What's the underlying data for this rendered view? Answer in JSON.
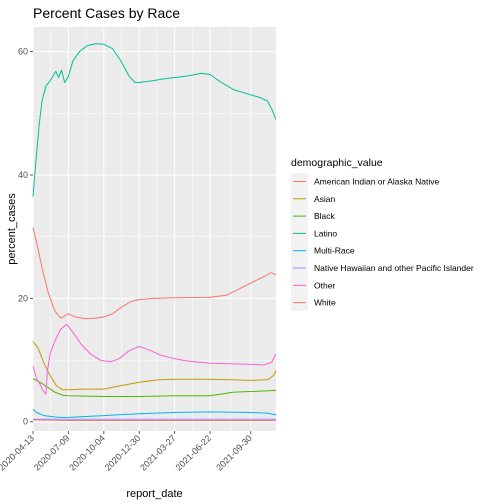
{
  "chart_data": {
    "type": "line",
    "title": "Percent Cases by Race",
    "xlabel": "report_date",
    "ylabel": "percent_cases",
    "x_ticks": [
      "2020-04-13",
      "2020-07-09",
      "2020-10-04",
      "2020-12-30",
      "2021-03-27",
      "2021-06-22",
      "2021-09-30"
    ],
    "x_range": [
      "2020-04-13",
      "2021-12-01"
    ],
    "y_ticks": [
      0,
      20,
      40,
      60
    ],
    "ylim": [
      -1.5,
      64
    ],
    "grid": true,
    "background": "#ebebeb",
    "legend": {
      "title": "demographic_value",
      "placement": "right"
    },
    "series": [
      {
        "name": "American Indian or Alaska Native",
        "color": "#F8766D",
        "points": [
          [
            "2020-04-13",
            0.3
          ],
          [
            "2020-07-09",
            0.2
          ],
          [
            "2020-12-30",
            0.2
          ],
          [
            "2021-06-22",
            0.2
          ],
          [
            "2021-12-01",
            0.2
          ]
        ]
      },
      {
        "name": "Asian",
        "color": "#C49A00",
        "points": [
          [
            "2020-04-13",
            13.0
          ],
          [
            "2020-04-25",
            12.0
          ],
          [
            "2020-05-10",
            9.5
          ],
          [
            "2020-05-25",
            7.5
          ],
          [
            "2020-06-10",
            5.8
          ],
          [
            "2020-06-25",
            5.2
          ],
          [
            "2020-07-09",
            5.2
          ],
          [
            "2020-08-15",
            5.3
          ],
          [
            "2020-10-04",
            5.3
          ],
          [
            "2020-11-10",
            5.8
          ],
          [
            "2020-12-30",
            6.4
          ],
          [
            "2021-02-15",
            6.8
          ],
          [
            "2021-03-27",
            6.9
          ],
          [
            "2021-05-10",
            6.9
          ],
          [
            "2021-06-22",
            6.9
          ],
          [
            "2021-08-10",
            6.8
          ],
          [
            "2021-09-30",
            6.7
          ],
          [
            "2021-11-10",
            6.8
          ],
          [
            "2021-11-25",
            7.5
          ],
          [
            "2021-12-01",
            8.3
          ]
        ]
      },
      {
        "name": "Black",
        "color": "#53B400",
        "points": [
          [
            "2020-04-13",
            7.0
          ],
          [
            "2020-05-05",
            6.2
          ],
          [
            "2020-06-05",
            4.8
          ],
          [
            "2020-06-25",
            4.3
          ],
          [
            "2020-07-09",
            4.2
          ],
          [
            "2020-10-04",
            4.1
          ],
          [
            "2020-12-30",
            4.1
          ],
          [
            "2021-03-27",
            4.2
          ],
          [
            "2021-06-22",
            4.2
          ],
          [
            "2021-07-20",
            4.5
          ],
          [
            "2021-08-20",
            4.8
          ],
          [
            "2021-09-30",
            4.9
          ],
          [
            "2021-11-10",
            5.0
          ],
          [
            "2021-12-01",
            5.1
          ]
        ]
      },
      {
        "name": "Latino",
        "color": "#00C094",
        "points": [
          [
            "2020-04-13",
            36.5
          ],
          [
            "2020-04-20",
            42.0
          ],
          [
            "2020-04-28",
            48.0
          ],
          [
            "2020-05-05",
            52.0
          ],
          [
            "2020-05-15",
            54.5
          ],
          [
            "2020-05-22",
            55.0
          ],
          [
            "2020-06-01",
            56.0
          ],
          [
            "2020-06-08",
            56.8
          ],
          [
            "2020-06-15",
            55.8
          ],
          [
            "2020-06-22",
            57.0
          ],
          [
            "2020-06-30",
            55.0
          ],
          [
            "2020-07-09",
            56.0
          ],
          [
            "2020-07-20",
            58.5
          ],
          [
            "2020-08-05",
            60.0
          ],
          [
            "2020-08-25",
            61.0
          ],
          [
            "2020-09-15",
            61.3
          ],
          [
            "2020-10-04",
            61.2
          ],
          [
            "2020-10-25",
            60.5
          ],
          [
            "2020-11-15",
            58.5
          ],
          [
            "2020-12-05",
            56.0
          ],
          [
            "2020-12-20",
            55.0
          ],
          [
            "2020-12-30",
            55.0
          ],
          [
            "2021-02-01",
            55.3
          ],
          [
            "2021-03-01",
            55.6
          ],
          [
            "2021-03-27",
            55.8
          ],
          [
            "2021-05-01",
            56.1
          ],
          [
            "2021-06-01",
            56.5
          ],
          [
            "2021-06-22",
            56.3
          ],
          [
            "2021-07-20",
            55.0
          ],
          [
            "2021-08-20",
            53.8
          ],
          [
            "2021-09-30",
            53.0
          ],
          [
            "2021-10-25",
            52.5
          ],
          [
            "2021-11-10",
            52.0
          ],
          [
            "2021-11-22",
            50.5
          ],
          [
            "2021-12-01",
            49.0
          ]
        ]
      },
      {
        "name": "Multi-Race",
        "color": "#00B6EB",
        "points": [
          [
            "2020-04-13",
            2.0
          ],
          [
            "2020-04-22",
            1.5
          ],
          [
            "2020-05-10",
            1.0
          ],
          [
            "2020-06-15",
            0.7
          ],
          [
            "2020-07-09",
            0.7
          ],
          [
            "2020-09-01",
            0.9
          ],
          [
            "2020-10-04",
            1.0
          ],
          [
            "2020-12-30",
            1.3
          ],
          [
            "2021-03-27",
            1.5
          ],
          [
            "2021-06-22",
            1.6
          ],
          [
            "2021-09-30",
            1.5
          ],
          [
            "2021-11-10",
            1.4
          ],
          [
            "2021-12-01",
            1.1
          ]
        ]
      },
      {
        "name": "Native Hawaiian and other Pacific Islander",
        "color": "#A58AFF",
        "points": [
          [
            "2020-04-13",
            0.4
          ],
          [
            "2020-07-09",
            0.4
          ],
          [
            "2020-12-30",
            0.4
          ],
          [
            "2021-06-22",
            0.4
          ],
          [
            "2021-12-01",
            0.4
          ]
        ]
      },
      {
        "name": "Other",
        "color": "#FB61D7",
        "points": [
          [
            "2020-04-13",
            9.0
          ],
          [
            "2020-04-22",
            7.0
          ],
          [
            "2020-05-01",
            6.0
          ],
          [
            "2020-05-08",
            5.0
          ],
          [
            "2020-05-15",
            4.5
          ],
          [
            "2020-05-18",
            8.0
          ],
          [
            "2020-05-25",
            11.0
          ],
          [
            "2020-06-05",
            13.0
          ],
          [
            "2020-06-20",
            15.0
          ],
          [
            "2020-07-05",
            15.8
          ],
          [
            "2020-07-20",
            14.5
          ],
          [
            "2020-08-10",
            12.5
          ],
          [
            "2020-09-01",
            11.0
          ],
          [
            "2020-09-25",
            10.0
          ],
          [
            "2020-10-20",
            9.7
          ],
          [
            "2020-11-10",
            10.2
          ],
          [
            "2020-12-05",
            11.5
          ],
          [
            "2020-12-30",
            12.2
          ],
          [
            "2021-01-25",
            11.6
          ],
          [
            "2021-02-20",
            10.8
          ],
          [
            "2021-03-27",
            10.2
          ],
          [
            "2021-05-01",
            9.8
          ],
          [
            "2021-06-22",
            9.5
          ],
          [
            "2021-08-10",
            9.4
          ],
          [
            "2021-09-30",
            9.3
          ],
          [
            "2021-11-01",
            9.2
          ],
          [
            "2021-11-20",
            9.6
          ],
          [
            "2021-12-01",
            11.0
          ]
        ]
      },
      {
        "name": "White",
        "color": "#F8766D",
        "points": [
          [
            "2020-04-13",
            31.5
          ],
          [
            "2020-04-22",
            29.0
          ],
          [
            "2020-05-05",
            25.0
          ],
          [
            "2020-05-20",
            21.0
          ],
          [
            "2020-06-05",
            18.0
          ],
          [
            "2020-06-20",
            16.8
          ],
          [
            "2020-07-09",
            17.5
          ],
          [
            "2020-07-25",
            17.0
          ],
          [
            "2020-08-20",
            16.7
          ],
          [
            "2020-09-15",
            16.8
          ],
          [
            "2020-10-04",
            17.0
          ],
          [
            "2020-10-25",
            17.5
          ],
          [
            "2020-11-15",
            18.5
          ],
          [
            "2020-12-10",
            19.5
          ],
          [
            "2020-12-30",
            19.8
          ],
          [
            "2021-02-01",
            20.0
          ],
          [
            "2021-03-27",
            20.1
          ],
          [
            "2021-06-22",
            20.2
          ],
          [
            "2021-08-01",
            20.5
          ],
          [
            "2021-09-01",
            21.5
          ],
          [
            "2021-09-30",
            22.5
          ],
          [
            "2021-11-01",
            23.5
          ],
          [
            "2021-11-20",
            24.2
          ],
          [
            "2021-12-01",
            23.8
          ]
        ]
      }
    ]
  }
}
